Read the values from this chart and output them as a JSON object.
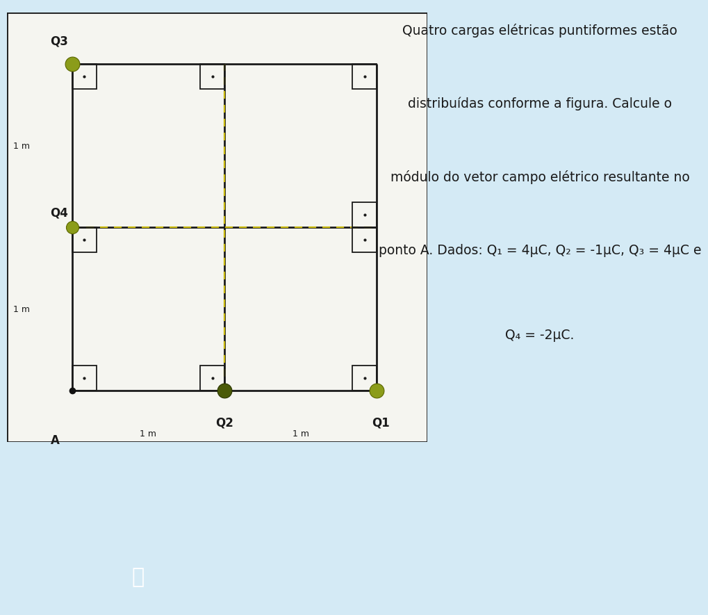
{
  "fig_width": 9.68,
  "fig_height": 9.02,
  "bg_color": "#d4eaf5",
  "panel_bg": "#f5f5f0",
  "panel_border_color": "#1a1a1a",
  "grid_color": "#1a1a1a",
  "dashed_color": "#c8b800",
  "charge_olive_bright": "#8b9c1a",
  "charge_olive_dark": "#4a5a08",
  "point_A_color": "#111111",
  "text_color": "#1a1a1a",
  "label_Q1": "Q1",
  "label_Q2": "Q2",
  "label_Q3": "Q3",
  "label_Q4": "Q4",
  "label_A": "A",
  "text_lines": [
    "Quatro cargas elétricas puntiformes estão",
    "distribuídas conforme a figura. Calcule o",
    "módulo do vetor campo elétrico resultante no",
    "ponto A. Dados: Q₁ = 4μC, Q₂ = -1μC, Q₃ = 4μC e",
    "Q₄ = -2μC."
  ]
}
